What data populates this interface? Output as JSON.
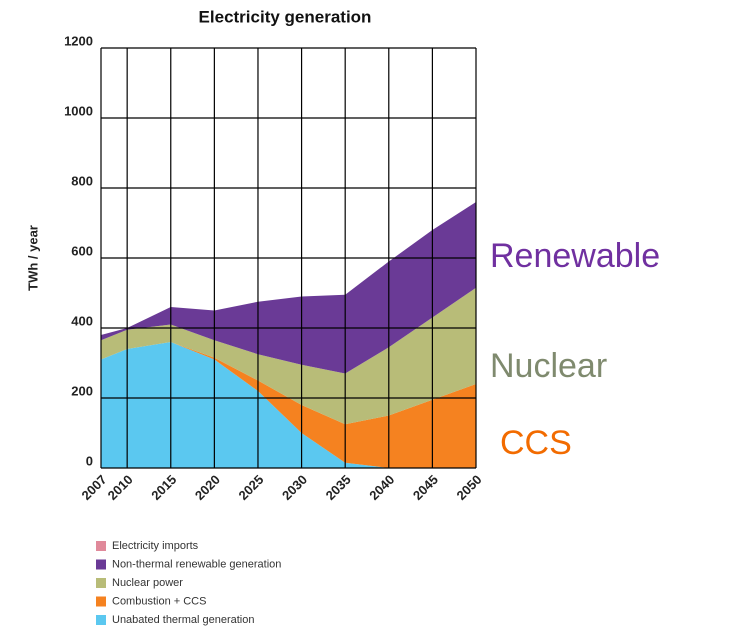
{
  "chart_data": {
    "type": "stacked_area",
    "title": "Electricity generation",
    "y_label": "TWh / year",
    "x": [
      2007,
      2010,
      2015,
      2020,
      2025,
      2030,
      2035,
      2040,
      2045,
      2050
    ],
    "xlim": [
      2007,
      2050
    ],
    "xticks": [
      2007,
      2010,
      2015,
      2020,
      2025,
      2030,
      2035,
      2040,
      2045,
      2050
    ],
    "ylim": [
      0,
      1200
    ],
    "yticks": [
      0,
      200,
      400,
      600,
      800,
      1000,
      1200
    ],
    "grid": true,
    "series": [
      {
        "name": "Unabated thermal generation",
        "color": "#5bc8f0",
        "values": [
          310,
          340,
          360,
          310,
          220,
          100,
          15,
          0,
          0,
          0
        ]
      },
      {
        "name": "Combustion + CCS",
        "color": "#f58220",
        "values": [
          0,
          0,
          0,
          5,
          30,
          80,
          110,
          150,
          195,
          240
        ]
      },
      {
        "name": "Nuclear power",
        "color": "#b8bc78",
        "values": [
          55,
          55,
          50,
          50,
          75,
          115,
          145,
          195,
          235,
          275
        ]
      },
      {
        "name": "Non-thermal renewable generation",
        "color": "#6a3a96",
        "values": [
          15,
          5,
          50,
          85,
          150,
          195,
          225,
          245,
          250,
          245
        ]
      },
      {
        "name": "Electricity imports",
        "color": "#e0899a",
        "values": [
          0,
          0,
          0,
          0,
          0,
          0,
          0,
          0,
          0,
          0
        ]
      }
    ],
    "annotations": [
      {
        "text": "Renewable",
        "color": "#7030a0"
      },
      {
        "text": "Nuclear",
        "color": "#7f8a6e"
      },
      {
        "text": "CCS",
        "color": "#f26b00"
      }
    ]
  }
}
